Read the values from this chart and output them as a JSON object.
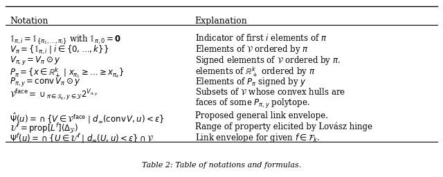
{
  "title": "Table 2: Table of notations and formulas.",
  "col1_header": "Notation",
  "col2_header": "Explanation",
  "rows": [
    {
      "notation": "$\\mathbb{1}_{\\pi,i} = \\mathbb{1}_{\\{\\pi_1,\\ldots,\\pi_i\\}}$ with $\\mathbb{1}_{\\pi,0} = \\mathbf{0}$",
      "explanation": "Indicator of first $i$ elements of $\\pi$"
    },
    {
      "notation": "$V_\\pi = \\{\\mathbb{1}_{\\pi,i} \\mid i \\in \\{0,\\ldots,k\\}\\}$",
      "explanation": "Elements of $\\mathcal{V}$ ordered by $\\pi$"
    },
    {
      "notation": "$V_{\\pi,y} = V_\\pi \\odot y$",
      "explanation": "Signed elements of $\\mathcal{V}$ ordered by $\\pi$."
    },
    {
      "notation": "$P_\\pi = \\{x \\in \\mathbb{R}^k_+ \\mid x_{\\pi_1} \\geq \\ldots \\geq x_{\\pi_k}\\}$",
      "explanation": "elements of $\\mathbb{R}^k_+$ ordered by $\\pi$"
    },
    {
      "notation": "$P_{\\pi,y} = \\mathrm{conv}\\, V_\\pi \\odot y$",
      "explanation": "Elements of $P_\\pi$ signed by $y$"
    },
    {
      "notation": "$\\mathcal{V}^{\\mathrm{face}} = \\cup_{\\pi \\in \\mathcal{S}_k, y \\in \\mathcal{Y}} 2^{V_{\\pi,y}}$",
      "explanation": "Subsets of $\\mathcal{V}$ whose convex hulls are\nfaces of some $P_{\\pi,y}$ polytope."
    },
    {
      "notation": "$\\hat{\\Psi}(u) = \\cap\\{V \\in \\mathcal{V}^{\\mathrm{face}} \\mid d_\\infty(\\mathrm{conv}\\, V, u) < \\epsilon\\}$",
      "explanation": "Proposed general link envelope."
    },
    {
      "notation": "$\\mathcal{U}^f = \\mathrm{prop}[L^f](\\Delta_\\mathcal{Y})$",
      "explanation": "Range of property elicited by Lovász hinge"
    },
    {
      "notation": "$\\Psi^f(u) = \\cap\\{U \\in \\mathcal{U}^f \\mid d_\\infty(U, u) < \\epsilon\\} \\cap \\mathcal{V}$",
      "explanation": "Link envelope for given $f \\in \\mathcal{F}_k$."
    }
  ],
  "bg_color": "#ffffff",
  "text_color": "#000000",
  "header_color": "#000000",
  "font_size": 8.5,
  "col_split": 0.42
}
